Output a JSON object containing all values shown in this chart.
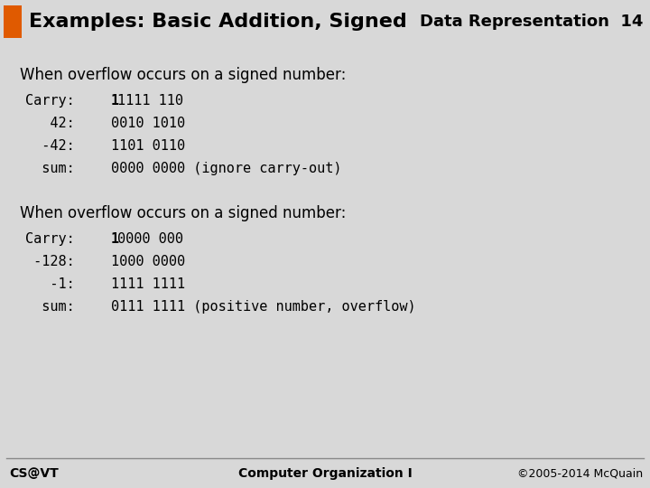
{
  "title_left": "Examples: Basic Addition, Signed",
  "title_right": "Data Representation  14",
  "orange_rect_color": "#e05a00",
  "slide_bg_color": "#d8d8d8",
  "content_bg_color": "#ececec",
  "header_bar_color": "#6b1010",
  "footer_left": "CS@VT",
  "footer_center": "Computer Organization I",
  "footer_right": "©2005-2014 McQuain",
  "section1_header": "When overflow occurs on a signed number:",
  "section2_header": "When overflow occurs on a signed number:"
}
